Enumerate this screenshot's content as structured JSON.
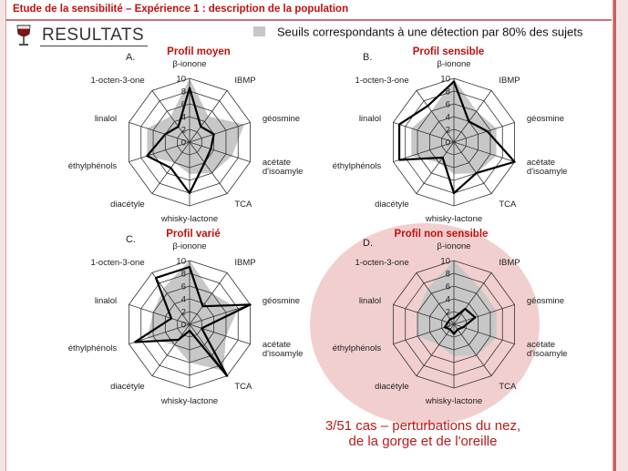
{
  "page": {
    "header_title": "Etude de la sensibilité – Expérience 1 : description de la population",
    "section_title": "RESULTATS",
    "legend_label": "Seuils correspondants à une détection par 80% des sujets",
    "caption": "3/51 cas – perturbations du nez, de la gorge et de l'oreille"
  },
  "colors": {
    "title_red": "#c01010",
    "threshold_fill": "#c7c7c7",
    "profile_line": "#000000",
    "highlight_pink": "#f2cfcf"
  },
  "icons": {
    "glass": "wine-glass-icon"
  },
  "chart_data": [
    {
      "type": "radar",
      "panel_letter": "A.",
      "title": "Profil moyen",
      "axes": [
        "β-ionone",
        "IBMP",
        "géosmine",
        "acétate d'isoamyle",
        "TCA",
        "whisky-lactone",
        "diacétyle",
        "éthylphénols",
        "linalol",
        "1-octen-3-one"
      ],
      "ticks": [
        0,
        2,
        4,
        6,
        8,
        10
      ],
      "range": [
        0,
        10
      ],
      "threshold": [
        10,
        5,
        9,
        7,
        6,
        5,
        4,
        7,
        7,
        5
      ],
      "values": [
        8.5,
        3,
        4,
        3.5,
        4,
        8,
        5,
        7,
        4,
        3
      ]
    },
    {
      "type": "radar",
      "panel_letter": "B.",
      "title": "Profil sensible",
      "axes": [
        "β-ionone",
        "IBMP",
        "géosmine",
        "acétate d'isoamyle",
        "TCA",
        "whisky-lactone",
        "diacétyle",
        "éthylphénols",
        "linalol",
        "1-octen-3-one"
      ],
      "ticks": [
        0,
        2,
        4,
        6,
        8,
        10
      ],
      "range": [
        0,
        10
      ],
      "threshold": [
        10,
        6,
        7,
        7,
        6,
        5,
        4,
        7,
        7,
        6
      ],
      "values": [
        9.5,
        4,
        5.5,
        10,
        6,
        8,
        3,
        9,
        9,
        7
      ]
    },
    {
      "type": "radar",
      "panel_letter": "C.",
      "title": "Profil varié",
      "axes": [
        "β-ionone",
        "IBMP",
        "géosmine",
        "acétate d'isoamyle",
        "TCA",
        "whisky-lactone",
        "diacétyle",
        "éthylphénols",
        "linalol",
        "1-octen-3-one"
      ],
      "ticks": [
        0,
        2,
        4,
        6,
        8,
        10
      ],
      "range": [
        0,
        10
      ],
      "threshold": [
        10,
        6,
        8,
        6,
        9,
        6,
        4,
        7,
        6,
        7
      ],
      "values": [
        9,
        3.5,
        10,
        2,
        10,
        1,
        3,
        9,
        3,
        9
      ]
    },
    {
      "type": "radar",
      "panel_letter": "D.",
      "title": "Profil non sensible",
      "axes": [
        "β-ionone",
        "IBMP",
        "géosmine",
        "acétate d'isoamyle",
        "TCA",
        "whisky-lactone",
        "diacétyle",
        "éthylphénols",
        "linalol",
        "1-octen-3-one"
      ],
      "ticks": [
        0,
        2,
        4,
        6,
        8,
        10
      ],
      "range": [
        0,
        10
      ],
      "threshold": [
        10,
        7,
        7,
        7,
        6,
        5,
        4,
        6,
        6,
        7
      ],
      "values": [
        1,
        3,
        3.5,
        1.5,
        1,
        1.5,
        1,
        1.5,
        1,
        1
      ]
    }
  ]
}
